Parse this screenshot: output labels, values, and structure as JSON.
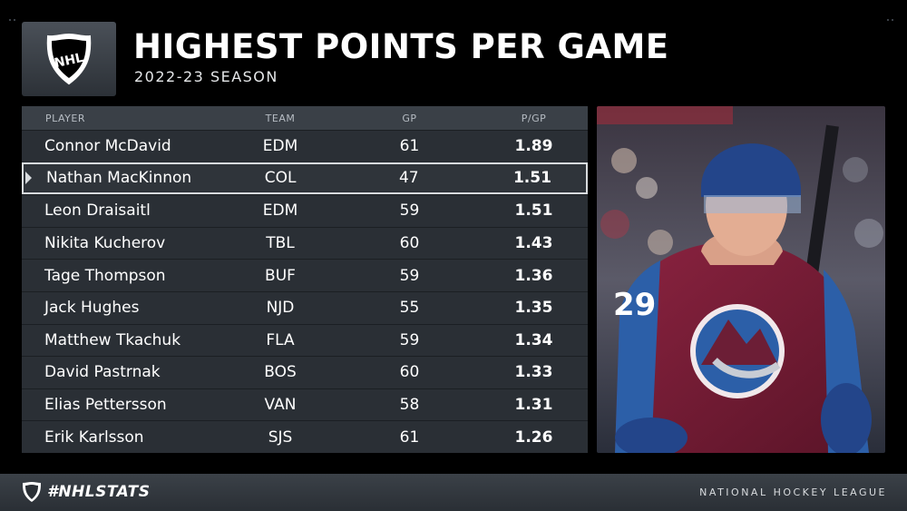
{
  "header": {
    "title": "HIGHEST POINTS PER GAME",
    "subtitle": "2022-23 SEASON"
  },
  "logo": {
    "icon": "nhl-shield-icon",
    "text": "NHL"
  },
  "table": {
    "columns": {
      "player": "PLAYER",
      "team": "TEAM",
      "gp": "GP",
      "ppg": "P/GP"
    },
    "rows": [
      {
        "player": "Connor McDavid",
        "team": "EDM",
        "gp": "61",
        "ppg": "1.89"
      },
      {
        "player": "Nathan MacKinnon",
        "team": "COL",
        "gp": "47",
        "ppg": "1.51"
      },
      {
        "player": "Leon Draisaitl",
        "team": "EDM",
        "gp": "59",
        "ppg": "1.51"
      },
      {
        "player": "Nikita Kucherov",
        "team": "TBL",
        "gp": "60",
        "ppg": "1.43"
      },
      {
        "player": "Tage Thompson",
        "team": "BUF",
        "gp": "59",
        "ppg": "1.36"
      },
      {
        "player": "Jack Hughes",
        "team": "NJD",
        "gp": "55",
        "ppg": "1.35"
      },
      {
        "player": "Matthew Tkachuk",
        "team": "FLA",
        "gp": "59",
        "ppg": "1.34"
      },
      {
        "player": "David Pastrnak",
        "team": "BOS",
        "gp": "60",
        "ppg": "1.33"
      },
      {
        "player": "Elias Pettersson",
        "team": "VAN",
        "gp": "58",
        "ppg": "1.31"
      },
      {
        "player": "Erik Karlsson",
        "team": "SJS",
        "gp": "61",
        "ppg": "1.26"
      }
    ]
  },
  "photo": {
    "jersey_number": "29",
    "icon": "player-photo"
  },
  "footer": {
    "hashtag": "#NHLSTATS",
    "league": "NATIONAL HOCKEY LEAGUE"
  },
  "colors": {
    "background": "#000000",
    "panel": "#2a2f35",
    "header_row": "#3a4047",
    "highlight_border": "#d8dbde",
    "avalanche_burgundy": "#7a1f35",
    "avalanche_blue": "#2c5fa8"
  }
}
